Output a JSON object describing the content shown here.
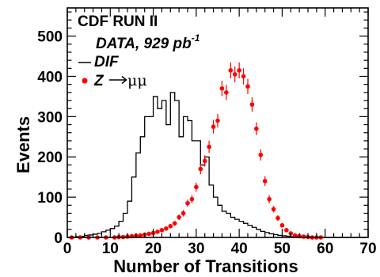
{
  "chart_data": {
    "type": "histogram",
    "title": "",
    "xlabel": "Number of Transitions",
    "ylabel": "Events",
    "xlim": [
      0,
      70
    ],
    "ylim": [
      0,
      570
    ],
    "x_ticks": [
      0,
      10,
      20,
      30,
      40,
      50,
      60,
      70
    ],
    "y_ticks": [
      0,
      100,
      200,
      300,
      400,
      500
    ],
    "grid": false,
    "annotations": {
      "experiment": "CDF RUN II",
      "dataset": "DATA, 929 pb",
      "dataset_sup": "-1",
      "legend_dif": "DIF",
      "legend_z_prefix": "Z",
      "legend_z_suffix": "μμ"
    },
    "series": [
      {
        "name": "DIF",
        "style": "step",
        "color": "#000000",
        "bin_width": 1,
        "x_start": 0,
        "values": [
          0,
          1,
          2,
          3,
          5,
          6,
          8,
          10,
          14,
          18,
          22,
          28,
          40,
          60,
          90,
          150,
          210,
          250,
          300,
          300,
          350,
          320,
          340,
          280,
          360,
          340,
          250,
          300,
          290,
          240,
          240,
          180,
          200,
          130,
          100,
          80,
          65,
          60,
          50,
          45,
          40,
          35,
          30,
          25,
          20,
          15,
          12,
          9,
          7,
          5,
          4,
          3,
          2,
          2,
          1,
          1,
          1,
          0,
          0,
          0,
          0,
          0,
          0,
          0,
          0,
          0,
          0,
          0,
          0,
          0
        ]
      },
      {
        "name": "Z→μμ",
        "style": "points",
        "color": "#ff0000",
        "x": [
          1,
          3,
          5,
          7,
          9,
          11,
          12,
          13,
          14,
          15,
          16,
          17,
          18,
          19,
          20,
          21,
          22,
          23,
          24,
          25,
          26,
          27,
          28,
          29,
          30,
          31,
          32,
          33,
          34,
          35,
          36,
          37,
          38,
          39,
          40,
          41,
          42,
          43,
          44,
          45,
          46,
          47,
          48,
          49,
          50,
          51,
          52,
          53,
          54,
          55,
          56,
          57,
          58,
          59
        ],
        "y": [
          0,
          0,
          0,
          0,
          0,
          0,
          1,
          1,
          2,
          3,
          4,
          5,
          7,
          9,
          11,
          14,
          18,
          22,
          28,
          35,
          50,
          60,
          85,
          95,
          125,
          170,
          190,
          225,
          275,
          290,
          370,
          360,
          415,
          405,
          415,
          400,
          375,
          330,
          270,
          205,
          140,
          95,
          70,
          48,
          30,
          18,
          10,
          5,
          3,
          2,
          1,
          0,
          0,
          0
        ],
        "errors": [
          0,
          0,
          0,
          0,
          0,
          0,
          1,
          1,
          1,
          2,
          2,
          2,
          3,
          3,
          3,
          4,
          4,
          5,
          5,
          6,
          7,
          8,
          9,
          10,
          11,
          13,
          14,
          15,
          17,
          17,
          19,
          19,
          20,
          20,
          20,
          20,
          19,
          18,
          16,
          14,
          12,
          10,
          8,
          7,
          5,
          4,
          3,
          2,
          2,
          1,
          1,
          0,
          0,
          0
        ]
      }
    ]
  }
}
